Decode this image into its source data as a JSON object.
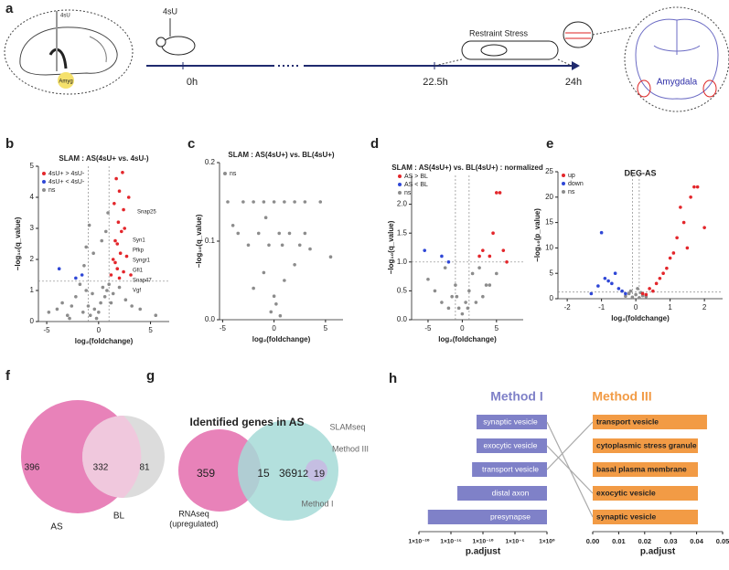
{
  "panel_labels": [
    "a",
    "b",
    "c",
    "d",
    "e",
    "f",
    "g",
    "h"
  ],
  "diagram": {
    "needle_label": "4sU",
    "region_label": "Amyg",
    "injection_label": "4sU",
    "stress_label": "Restraint Stress",
    "time_labels": [
      "0h",
      "22.5h",
      "24h"
    ],
    "target_label": "Amygdala"
  },
  "chart_data": [
    {
      "type": "scatter",
      "title": "SLAM : AS(4sU+ vs. 4sU-)",
      "xlabel": "log₂(foldchange)",
      "ylabel": "−log₁₀(q_value)",
      "xlim": [
        -5.8,
        6.8
      ],
      "ylim": [
        0,
        5
      ],
      "xticks": [
        -5,
        0,
        5
      ],
      "yticks": [
        0,
        1,
        2,
        3,
        4,
        5
      ],
      "thresholds": {
        "x": [
          -1,
          1
        ],
        "y": [
          1.3
        ]
      },
      "series": [
        {
          "name": "4sU+ > 4sU-",
          "color": "#e3262b",
          "x": [
            1.2,
            1.4,
            1.5,
            1.6,
            1.7,
            1.8,
            1.9,
            2.0,
            2.1,
            2.2,
            2.3,
            2.4,
            2.5,
            2.7,
            2.9,
            3.1,
            1.6,
            2.0,
            2.4,
            1.8
          ],
          "values": [
            1.5,
            2.0,
            3.8,
            2.6,
            4.6,
            1.7,
            3.2,
            4.2,
            2.2,
            2.9,
            4.8,
            1.6,
            3.0,
            2.1,
            4.0,
            1.5,
            1.9,
            1.4,
            3.6,
            2.5
          ]
        },
        {
          "name": "4sU+ < 4sU-",
          "color": "#2f47d6",
          "x": [
            -3.8,
            -2.2,
            -1.6
          ],
          "values": [
            1.7,
            1.4,
            1.5
          ]
        },
        {
          "name": "ns",
          "color": "#8c8c8c",
          "x": [
            -4.8,
            -4,
            -3.5,
            -3,
            -2.6,
            -2.2,
            -1.8,
            -1.5,
            -1.2,
            -1,
            -0.8,
            -0.6,
            -0.4,
            -0.2,
            0,
            0.2,
            0.4,
            0.6,
            0.8,
            1,
            -0.5,
            0.3,
            -1.4,
            1.4,
            2,
            2.6,
            3.2,
            4,
            5.5,
            -2.8,
            -0.9,
            0.7,
            -1.2,
            0.9,
            1.2
          ],
          "values": [
            0.3,
            0.4,
            0.6,
            0.2,
            0.5,
            0.8,
            1.2,
            0.3,
            1.0,
            0.5,
            0.2,
            0.9,
            0.4,
            0.1,
            0.3,
            0.6,
            1.1,
            0.8,
            1.0,
            1.2,
            2.2,
            2.6,
            1.8,
            0.9,
            1.1,
            0.7,
            0.5,
            0.4,
            0.2,
            0.1,
            3.1,
            2.9,
            2.4,
            3.5,
            0.6
          ]
        }
      ],
      "gene_labels": [
        "Snap25",
        "Syn1",
        "Pfkp",
        "Syngr1",
        "Gfi1",
        "Snap47",
        "Vgf"
      ]
    },
    {
      "type": "scatter",
      "title": "SLAM : AS(4sU+) vs. BL(4sU+)",
      "xlabel": "log₂(foldchange)",
      "ylabel": "−log₁₀(q_value)",
      "xlim": [
        -5.3,
        6.7
      ],
      "ylim": [
        0,
        0.2
      ],
      "xticks": [
        -5,
        0,
        5
      ],
      "yticks": [
        {
          "value": 0,
          "label": "0.0"
        },
        0.1,
        0.2
      ],
      "series": [
        {
          "name": "ns",
          "color": "#8c8c8c",
          "x": [
            -4.5,
            -3,
            -2,
            -1,
            0,
            1,
            2,
            3,
            4.5,
            -3.5,
            -1.5,
            0.5,
            1.5,
            3,
            -2.5,
            -0.5,
            0.8,
            2.5,
            -1,
            0,
            1,
            -0.3,
            0.2,
            -2,
            2,
            5.5,
            -4,
            0.6,
            -0.8,
            3.5
          ],
          "values": [
            0.15,
            0.15,
            0.15,
            0.15,
            0.15,
            0.15,
            0.15,
            0.15,
            0.15,
            0.11,
            0.11,
            0.11,
            0.11,
            0.11,
            0.095,
            0.095,
            0.095,
            0.095,
            0.06,
            0.03,
            0.05,
            0.01,
            0.02,
            0.04,
            0.07,
            0.08,
            0.12,
            0.005,
            0.13,
            0.09
          ]
        }
      ]
    },
    {
      "type": "scatter",
      "title": "SLAM : AS(4sU+) vs. BL(4sU+) : normalized",
      "xlabel": "log₂(foldchange)",
      "ylabel": "−log₁₀(q_value)",
      "xlim": [
        -7.4,
        8.9
      ],
      "ylim": [
        0,
        2.5
      ],
      "xticks": [
        -5,
        0,
        5
      ],
      "yticks": [
        {
          "value": 0,
          "label": "0.0"
        },
        0.5,
        {
          "value": 1,
          "label": "1.0"
        },
        1.5,
        {
          "value": 2,
          "label": "2.0"
        }
      ],
      "thresholds": {
        "x": [
          -1,
          1
        ],
        "y": [
          1
        ]
      },
      "series": [
        {
          "name": "AS > BL",
          "color": "#e3262b",
          "x": [
            2.5,
            3,
            4,
            5,
            5.5,
            6,
            4.5,
            6.5
          ],
          "values": [
            1.1,
            1.2,
            1.1,
            2.2,
            2.2,
            1.2,
            1.5,
            1.0
          ]
        },
        {
          "name": "AS < BL",
          "color": "#2f47d6",
          "x": [
            -3,
            -5.5,
            -2
          ],
          "values": [
            1.1,
            1.2,
            1.0
          ]
        },
        {
          "name": "ns",
          "color": "#8c8c8c",
          "x": [
            -5,
            -4,
            -3,
            -2,
            -1.5,
            -1,
            -0.5,
            0,
            0.5,
            1,
            1.5,
            2,
            3,
            4,
            5,
            -2.5,
            2.5,
            -0.8,
            0.8,
            3.5
          ],
          "values": [
            0.7,
            0.5,
            0.3,
            0.2,
            0.4,
            0.6,
            0.2,
            0.1,
            0.3,
            0.5,
            0.8,
            0.3,
            0.4,
            0.6,
            0.8,
            0.9,
            0.9,
            0.4,
            0.2,
            0.6
          ]
        }
      ]
    },
    {
      "type": "scatter",
      "title": "DEG-AS",
      "xlabel": "log₂(foldchange)",
      "ylabel": "−log₁₀(p_value)",
      "xlim": [
        -2.27,
        2.53
      ],
      "ylim": [
        0,
        25
      ],
      "xticks": [
        -2,
        -1,
        0,
        1,
        2
      ],
      "yticks": [
        0,
        5,
        10,
        15,
        20,
        25
      ],
      "thresholds": {
        "x": [
          -0.1,
          0.1
        ],
        "y": [
          1.3
        ]
      },
      "series": [
        {
          "name": "up",
          "color": "#e3262b",
          "x": [
            0.2,
            0.4,
            0.6,
            0.8,
            1,
            1.2,
            1.4,
            1.6,
            1.8,
            0.5,
            0.9,
            1.1,
            1.3,
            0.3,
            0.7,
            1.5,
            2,
            1.7
          ],
          "values": [
            1,
            2,
            3,
            5,
            8,
            12,
            15,
            20,
            22,
            1.5,
            6,
            9,
            18,
            0.8,
            4,
            10,
            14,
            22
          ]
        },
        {
          "name": "down",
          "color": "#2f47d6",
          "x": [
            -0.3,
            -0.5,
            -0.7,
            -0.9,
            -1.1,
            -0.4,
            -0.6,
            -0.8,
            -1.3,
            -1
          ],
          "values": [
            1,
            2,
            3,
            4,
            2.5,
            1.5,
            5,
            3.5,
            1,
            13
          ]
        },
        {
          "name": "ns",
          "color": "#8c8c8c",
          "x": [
            -0.3,
            -0.2,
            -0.1,
            0,
            0.1,
            0.2,
            0.3,
            -0.15,
            0.15,
            0.05
          ],
          "values": [
            0.5,
            1,
            0.3,
            0.8,
            0.2,
            0.6,
            0.4,
            1.5,
            1.2,
            2
          ]
        }
      ]
    },
    {
      "type": "venn",
      "sets": [
        {
          "name": "AS",
          "color": "#e882b9",
          "count": 396
        },
        {
          "name": "BL",
          "color": "#d6d6d6",
          "count": 81
        }
      ],
      "overlaps": [
        332
      ]
    },
    {
      "type": "venn",
      "title": "Identified genes in AS",
      "group_label": "SLAMseq",
      "sets": [
        {
          "name_lines": [
            "RNAseq",
            "(upregulated)"
          ],
          "color": "#e882b9",
          "count": 359
        },
        {
          "name": "Method I",
          "color": "#a6dbd7",
          "count": 369
        },
        {
          "name": "Method III",
          "color": "#c8b7e3",
          "count": 19
        }
      ],
      "overlaps": [
        15,
        12
      ]
    },
    {
      "type": "hbar",
      "title": "Method I",
      "color": "#7f81c8",
      "xlabel": "p.adjust",
      "xscale": "log",
      "categories": [
        "synaptic vesicle",
        "exocytic vesicle",
        "transport vesicle",
        "distal axon",
        "presynapse"
      ],
      "values": [
        1e-11,
        1e-11,
        2e-12,
        1e-14,
        2.5e-19
      ],
      "xlim": [
        1e-20,
        1
      ],
      "xticks": [
        {
          "value": 1e-20,
          "label": "1×10⁻²⁰"
        },
        {
          "value": 1e-15,
          "label": "1×10⁻¹⁵"
        },
        {
          "value": 1e-10,
          "label": "1×10⁻¹⁰"
        },
        {
          "value": 1e-05,
          "label": "1×10⁻⁵"
        },
        {
          "value": 1,
          "label": "1×10⁰"
        }
      ]
    },
    {
      "type": "hbar",
      "title": "Method III",
      "color": "#f29b45",
      "xlabel": "p.adjust",
      "xscale": "linear",
      "categories": [
        "transport vesicle",
        "cytoplasmic stress granule",
        "basal plasma membrane",
        "exocytic vesicle",
        "synaptic vesicle"
      ],
      "values": [
        0.044,
        0.0405,
        0.0405,
        0.0405,
        0.0405
      ],
      "xlim": [
        0,
        0.05
      ],
      "xticks": [
        {
          "value": 0,
          "label": "0.00"
        },
        {
          "value": 0.01,
          "label": "0.01"
        },
        {
          "value": 0.02,
          "label": "0.02"
        },
        {
          "value": 0.03,
          "label": "0.03"
        },
        {
          "value": 0.04,
          "label": "0.04"
        },
        {
          "value": 0.05,
          "label": "0.05"
        }
      ]
    }
  ]
}
